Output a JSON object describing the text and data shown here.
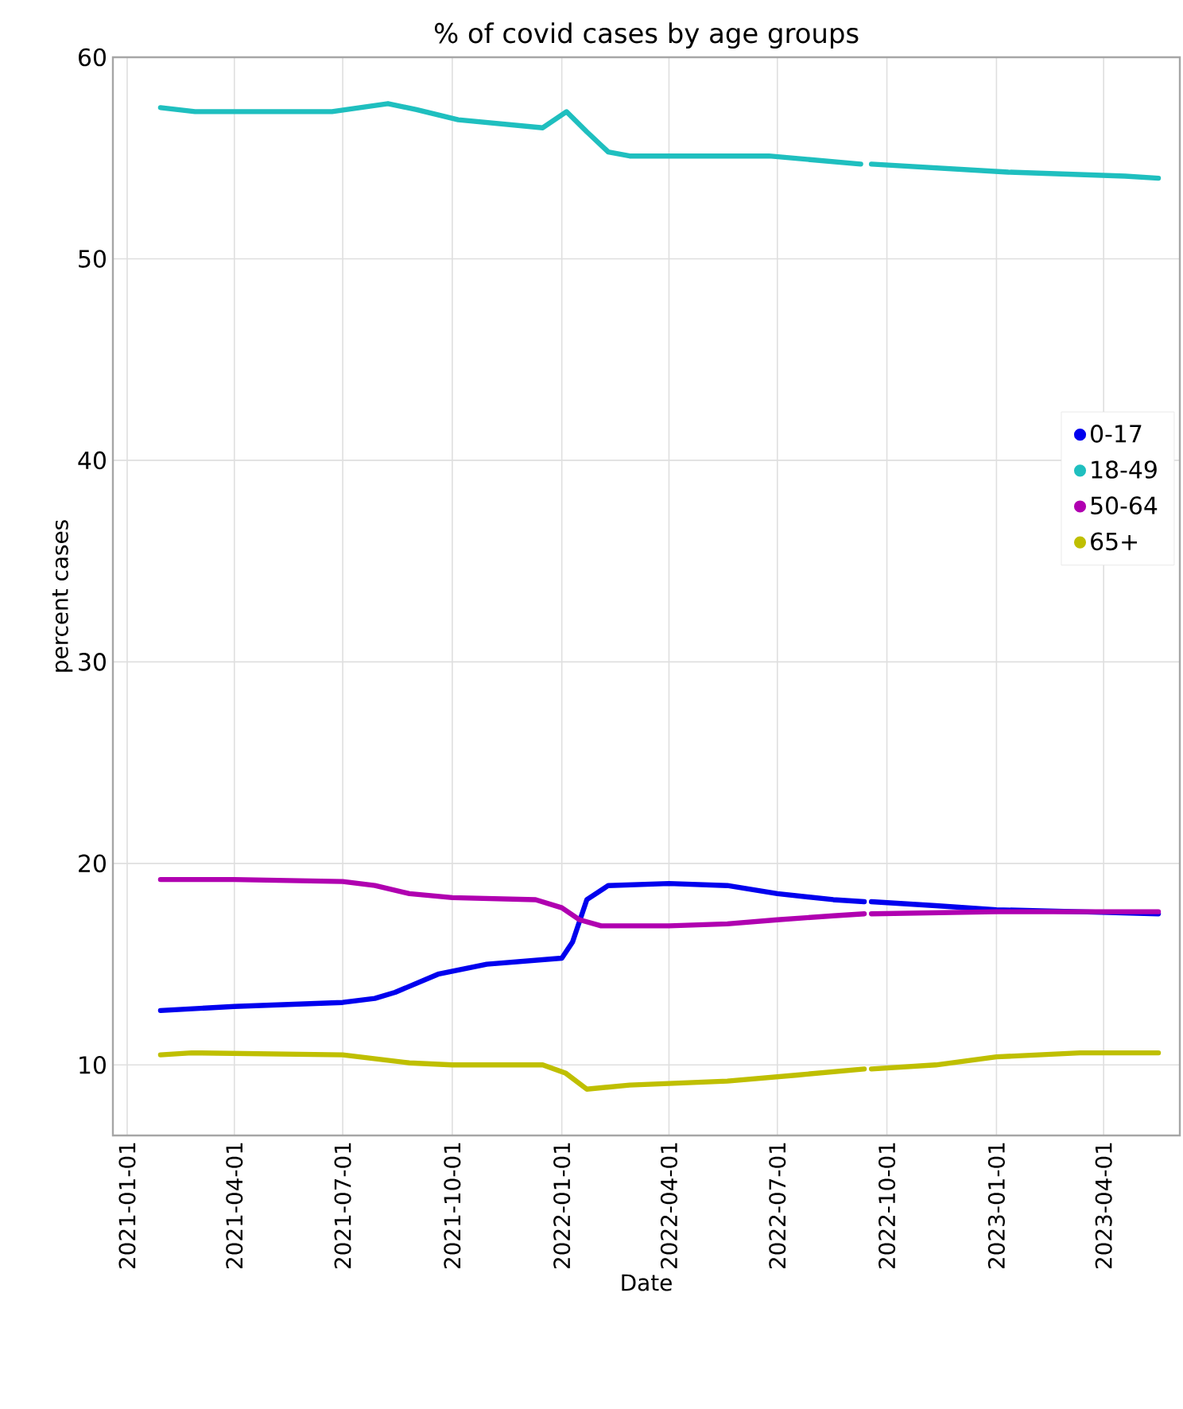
{
  "chart_data": {
    "type": "line",
    "title": "% of covid cases by age groups",
    "xlabel": "Date",
    "ylabel": "percent cases",
    "xlim": [
      "2020-12-20",
      "2023-06-04"
    ],
    "ylim": [
      6.5,
      60
    ],
    "xticks": [
      "2021-01-01",
      "2021-04-01",
      "2021-07-01",
      "2021-10-01",
      "2022-01-01",
      "2022-04-01",
      "2022-07-01",
      "2022-10-01",
      "2023-01-01",
      "2023-04-01"
    ],
    "yticks": [
      10,
      20,
      30,
      40,
      50,
      60
    ],
    "grid": true,
    "legend": "right",
    "marker": "none",
    "line_style": "solid",
    "series": [
      {
        "name": "0-17",
        "color": "#0000ee",
        "x": [
          "2021-01-29",
          "2021-04-01",
          "2021-07-01",
          "2021-07-28",
          "2021-08-14",
          "2021-09-19",
          "2021-10-30",
          "2022-01-01",
          "2022-01-10",
          "2022-01-22",
          "2022-02-09",
          "2022-04-01",
          "2022-05-20",
          "2022-07-01",
          "2022-08-17",
          "2022-09-12",
          "2022-09-15",
          "2022-09-18",
          "2022-11-11",
          "2023-01-01",
          "2023-03-12",
          "2023-05-17"
        ],
        "values": [
          12.7,
          12.9,
          13.1,
          13.3,
          13.6,
          14.5,
          15.0,
          15.3,
          16.1,
          18.2,
          18.9,
          19.0,
          18.9,
          18.5,
          18.2,
          18.1,
          null,
          18.1,
          17.9,
          17.7,
          17.6,
          17.5
        ]
      },
      {
        "name": "18-49",
        "color": "#1fbfbf",
        "x": [
          "2021-01-29",
          "2021-02-27",
          "2021-06-22",
          "2021-08-08",
          "2021-09-01",
          "2021-10-06",
          "2021-12-16",
          "2022-01-05",
          "2022-01-22",
          "2022-02-09",
          "2022-02-27",
          "2022-06-24",
          "2022-09-09",
          "2022-09-15",
          "2022-09-18",
          "2023-01-11",
          "2023-04-19",
          "2023-05-17"
        ],
        "values": [
          57.5,
          57.3,
          57.3,
          57.7,
          57.4,
          56.9,
          56.5,
          57.3,
          56.3,
          55.3,
          55.1,
          55.1,
          54.7,
          null,
          54.7,
          54.3,
          54.1,
          54.0
        ]
      },
      {
        "name": "50-64",
        "color": "#b000b0",
        "x": [
          "2021-01-29",
          "2021-04-01",
          "2021-07-01",
          "2021-07-28",
          "2021-08-26",
          "2021-10-01",
          "2021-12-10",
          "2022-01-01",
          "2022-01-16",
          "2022-02-03",
          "2022-04-01",
          "2022-05-20",
          "2022-07-01",
          "2022-08-17",
          "2022-09-12",
          "2022-09-15",
          "2022-09-18",
          "2023-01-01",
          "2023-03-12",
          "2023-05-17"
        ],
        "values": [
          19.2,
          19.2,
          19.1,
          18.9,
          18.5,
          18.3,
          18.2,
          17.8,
          17.2,
          16.9,
          16.9,
          17.0,
          17.2,
          17.4,
          17.5,
          null,
          17.5,
          17.6,
          17.6,
          17.6
        ]
      },
      {
        "name": "65+",
        "color": "#bfbf00",
        "x": [
          "2021-01-29",
          "2021-02-24",
          "2021-07-01",
          "2021-08-26",
          "2021-10-01",
          "2021-12-16",
          "2022-01-04",
          "2022-01-22",
          "2022-02-27",
          "2022-05-20",
          "2022-07-18",
          "2022-09-12",
          "2022-09-15",
          "2022-09-18",
          "2022-11-11",
          "2023-01-01",
          "2023-03-12",
          "2023-05-17"
        ],
        "values": [
          10.5,
          10.6,
          10.5,
          10.1,
          10.0,
          10.0,
          9.6,
          8.8,
          9.0,
          9.2,
          9.5,
          9.8,
          null,
          9.8,
          10.0,
          10.4,
          10.6,
          10.6
        ]
      }
    ]
  }
}
